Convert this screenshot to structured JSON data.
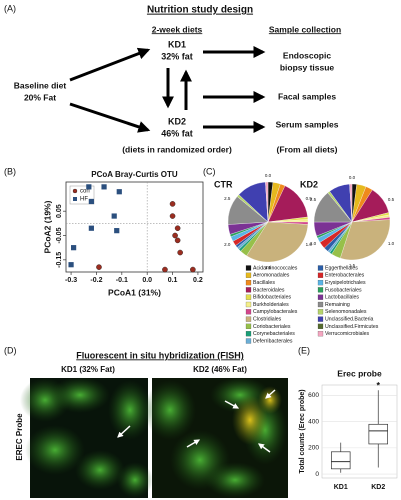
{
  "panel_a": {
    "panel_label": "(A)",
    "title": "Nutrition study design",
    "diets_header": "2-week diets",
    "collection_header": "Sample collection",
    "baseline": {
      "name": "Baseline diet",
      "fat": "20% Fat"
    },
    "kd1": {
      "name": "KD1",
      "fat": "32% fat"
    },
    "kd2": {
      "name": "KD2",
      "fat": "46% fat"
    },
    "diet_note": "(diets in randomized order)",
    "samples": [
      "Endoscopic",
      "biopsy tissue",
      "Facal samples",
      "Serum samples"
    ],
    "samples_note": "(From all diets)"
  },
  "chart_data": [
    {
      "type": "scatter",
      "panel_label": "(B)",
      "title": "PCoA Bray-Curtis OTU",
      "x_label": "PCoA1 (31%)",
      "y_label": "PCoA2 (19%)",
      "xlim": [
        -0.32,
        0.22
      ],
      "ylim": [
        -0.2,
        0.17
      ],
      "xticks": [
        -0.3,
        -0.2,
        -0.1,
        {
          "value": 0,
          "label": "0.0"
        },
        0.1,
        0.2
      ],
      "yticks": [
        -0.15,
        -0.05,
        0.05
      ],
      "legend": "top-left",
      "series": [
        {
          "name": "con",
          "color": "#9b2d20",
          "marker": "circle",
          "x": [
            0.1,
            0.1,
            0.12,
            0.11,
            0.12,
            0.13,
            0.07,
            0.18,
            -0.19
          ],
          "y": [
            0.08,
            0.03,
            -0.02,
            -0.05,
            -0.07,
            -0.12,
            -0.19,
            -0.19,
            -0.18
          ]
        },
        {
          "name": "HF",
          "color": "#2b4f7e",
          "marker": "square",
          "x": [
            -0.23,
            -0.17,
            -0.11,
            -0.22,
            -0.13,
            -0.22,
            -0.12,
            -0.29,
            -0.3
          ],
          "y": [
            0.15,
            0.15,
            0.13,
            0.09,
            0.03,
            -0.02,
            -0.03,
            -0.1,
            -0.17
          ]
        }
      ]
    },
    {
      "type": "pie",
      "panel_label": "(C)",
      "ring_labels": [
        "0.0",
        "0.5",
        "1.0",
        "1.5",
        "2.0",
        "2.5"
      ],
      "categories": [
        "Acidaminococcales",
        "Aeromonadales",
        "Bacillales",
        "Bacteroidales",
        "Bifidobacteriales",
        "Burkholderiales",
        "Campylobacterales",
        "Clostridiales",
        "Coriobacteriales",
        "Corynebacteriales",
        "Deferribacterales",
        "Eggerthellales",
        "Enterobacterales",
        "Erysipelotrichales",
        "Fusobacteriales",
        "Lactobacillales",
        "Remaining",
        "Selenomonadales",
        "Unclassified.Bacteria",
        "Unclassified.Firmicutes",
        "Verrucomicrobiales"
      ],
      "colors": [
        "#111111",
        "#e6b91e",
        "#ef8a1c",
        "#a51c5a",
        "#e3dd4f",
        "#f4ef8a",
        "#d2468c",
        "#c9b27c",
        "#97c04a",
        "#1b9e77",
        "#6baed6",
        "#2c5ea8",
        "#d62728",
        "#5ab4e5",
        "#2ca05c",
        "#7b3294",
        "#8c8c8c",
        "#b5d36b",
        "#4040b0",
        "#556b2f",
        "#f4a6c0"
      ],
      "series": [
        {
          "name": "CTR",
          "values": [
            2,
            3,
            2,
            16,
            1,
            1,
            1,
            33,
            3,
            1,
            1,
            1,
            2,
            2,
            1,
            4,
            12,
            1,
            12,
            0,
            1
          ]
        },
        {
          "name": "KD2",
          "values": [
            2,
            4,
            3,
            12,
            1,
            1,
            1,
            31,
            4,
            1,
            1,
            2,
            3,
            2,
            1,
            6,
            14,
            1,
            9,
            0,
            1
          ]
        }
      ]
    },
    {
      "type": "box",
      "panel_label": "(E)",
      "title": "Erec probe",
      "y_label": "Total counts (Erec probe)",
      "categories": [
        "KD1",
        "KD2"
      ],
      "ylim": [
        -30,
        680
      ],
      "yticks": [
        0,
        200,
        400,
        600
      ],
      "grid": true,
      "color": "#ffffff",
      "boxes": [
        {
          "min": 10,
          "q1": 40,
          "median": 95,
          "q3": 170,
          "max": 240
        },
        {
          "min": 50,
          "q1": 230,
          "median": 330,
          "q3": 380,
          "max": 640
        }
      ],
      "annotation": "*"
    }
  ],
  "panel_d": {
    "panel_label": "(D)",
    "title": "Fluorescent in situ hybridization (FISH)",
    "images": [
      "KD1 (32% Fat)",
      "KD2 (46% Fat)"
    ],
    "row_label": "EREC Probe"
  }
}
